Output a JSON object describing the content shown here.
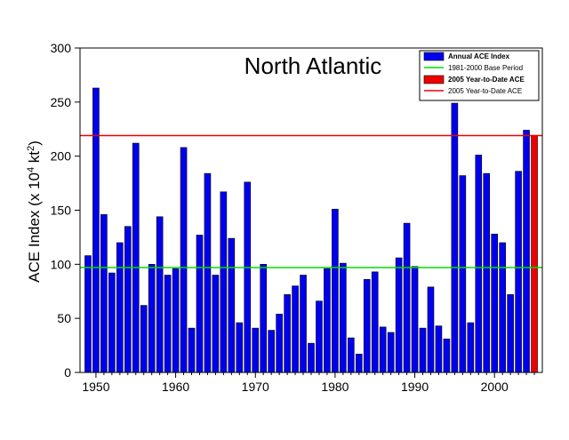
{
  "chart_data": {
    "type": "bar",
    "title": "North Atlantic",
    "xlabel": "",
    "ylabel": "ACE Index (x 10⁴ kt²)",
    "ylabel_parts": {
      "main": "ACE Index (x 10",
      "exp1": "4",
      "mid": " kt",
      "exp2": "2",
      "close": ")"
    },
    "xlim": [
      1948,
      2006
    ],
    "ylim": [
      0,
      300
    ],
    "x_ticks": [
      1950,
      1960,
      1970,
      1980,
      1990,
      2000
    ],
    "y_ticks": [
      0,
      50,
      100,
      150,
      200,
      250,
      300
    ],
    "grid": false,
    "legend_position": "top-right",
    "series": [
      {
        "name": "Annual ACE Index",
        "color": "#0000ee",
        "x": [
          1949,
          1950,
          1951,
          1952,
          1953,
          1954,
          1955,
          1956,
          1957,
          1958,
          1959,
          1960,
          1961,
          1962,
          1963,
          1964,
          1965,
          1966,
          1967,
          1968,
          1969,
          1970,
          1971,
          1972,
          1973,
          1974,
          1975,
          1976,
          1977,
          1978,
          1979,
          1980,
          1981,
          1982,
          1983,
          1984,
          1985,
          1986,
          1987,
          1988,
          1989,
          1990,
          1991,
          1992,
          1993,
          1994,
          1995,
          1996,
          1997,
          1998,
          1999,
          2000,
          2001,
          2002,
          2003,
          2004
        ],
        "values": [
          108,
          263,
          146,
          92,
          120,
          135,
          212,
          62,
          100,
          144,
          90,
          96,
          208,
          41,
          127,
          184,
          90,
          167,
          124,
          46,
          176,
          41,
          100,
          39,
          54,
          72,
          80,
          90,
          27,
          66,
          96,
          151,
          101,
          32,
          17,
          86,
          93,
          42,
          37,
          106,
          138,
          98,
          41,
          79,
          43,
          31,
          249,
          182,
          46,
          201,
          184,
          128,
          120,
          72,
          186,
          224
        ]
      },
      {
        "name": "2005 Year-to-Date ACE",
        "color": "#ee0000",
        "x": [
          2005
        ],
        "values": [
          219
        ]
      }
    ],
    "reference_lines": [
      {
        "name": "1981-2000 Base Period",
        "value": 97,
        "color": "#00dd00"
      },
      {
        "name": "2005 Year-to-Date ACE",
        "value": 219,
        "color": "#ee0000"
      }
    ],
    "legend": [
      {
        "label": "Annual ACE Index",
        "kind": "box",
        "color": "#0000ee",
        "bold": true
      },
      {
        "label": "1981-2000 Base Period",
        "kind": "line",
        "color": "#00dd00",
        "bold": false
      },
      {
        "label": "2005 Year-to-Date ACE",
        "kind": "box",
        "color": "#ee0000",
        "bold": true
      },
      {
        "label": "2005 Year-to-Date ACE",
        "kind": "line",
        "color": "#ee0000",
        "bold": false
      }
    ]
  }
}
